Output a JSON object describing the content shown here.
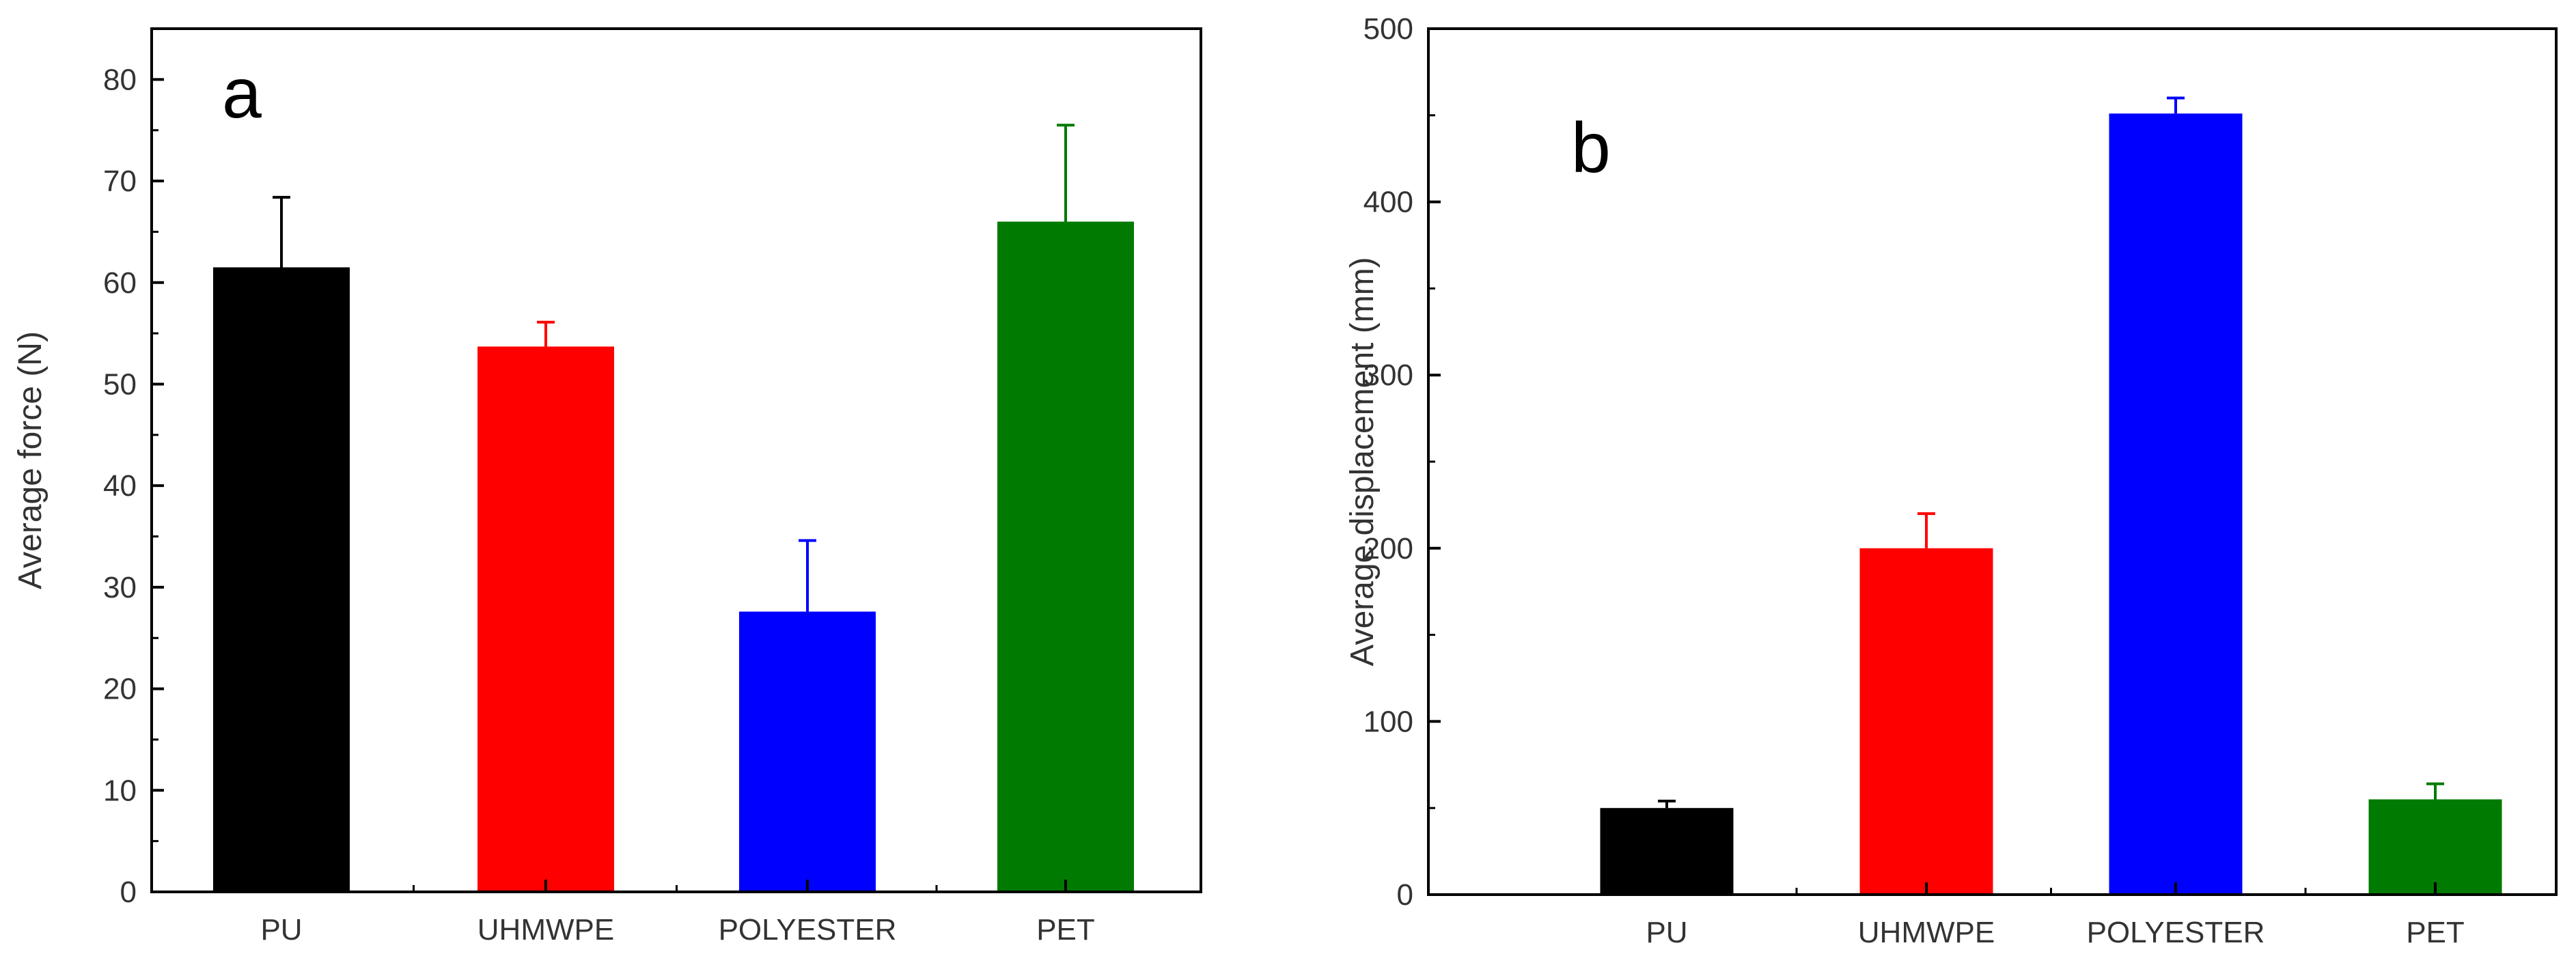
{
  "chart_data": [
    {
      "type": "bar",
      "panel_label": "a",
      "categories": [
        "PU",
        "UHMWPE",
        "POLYESTER",
        "PET"
      ],
      "values": [
        61.5,
        53.7,
        27.6,
        66.0
      ],
      "errors": [
        6.9,
        2.4,
        7.0,
        9.5
      ],
      "colors": [
        "#000000",
        "#ff0000",
        "#0000ff",
        "#007a00"
      ],
      "title": "",
      "xlabel": "",
      "ylabel": "Average force (N)",
      "ylim": [
        0,
        85
      ],
      "yticks": [
        0,
        10,
        20,
        30,
        40,
        50,
        60,
        70,
        80
      ],
      "grid": false
    },
    {
      "type": "bar",
      "panel_label": "b",
      "categories": [
        "PU",
        "UHMWPE",
        "POLYESTER",
        "PET"
      ],
      "values": [
        50,
        200,
        451,
        55
      ],
      "errors": [
        4,
        20,
        9,
        9
      ],
      "colors": [
        "#000000",
        "#ff0000",
        "#0000ff",
        "#007a00"
      ],
      "title": "",
      "xlabel": "",
      "ylabel": "Average  displacement (mm)",
      "ylim": [
        0,
        500
      ],
      "yticks": [
        0,
        100,
        200,
        300,
        400,
        500
      ],
      "grid": false
    }
  ]
}
